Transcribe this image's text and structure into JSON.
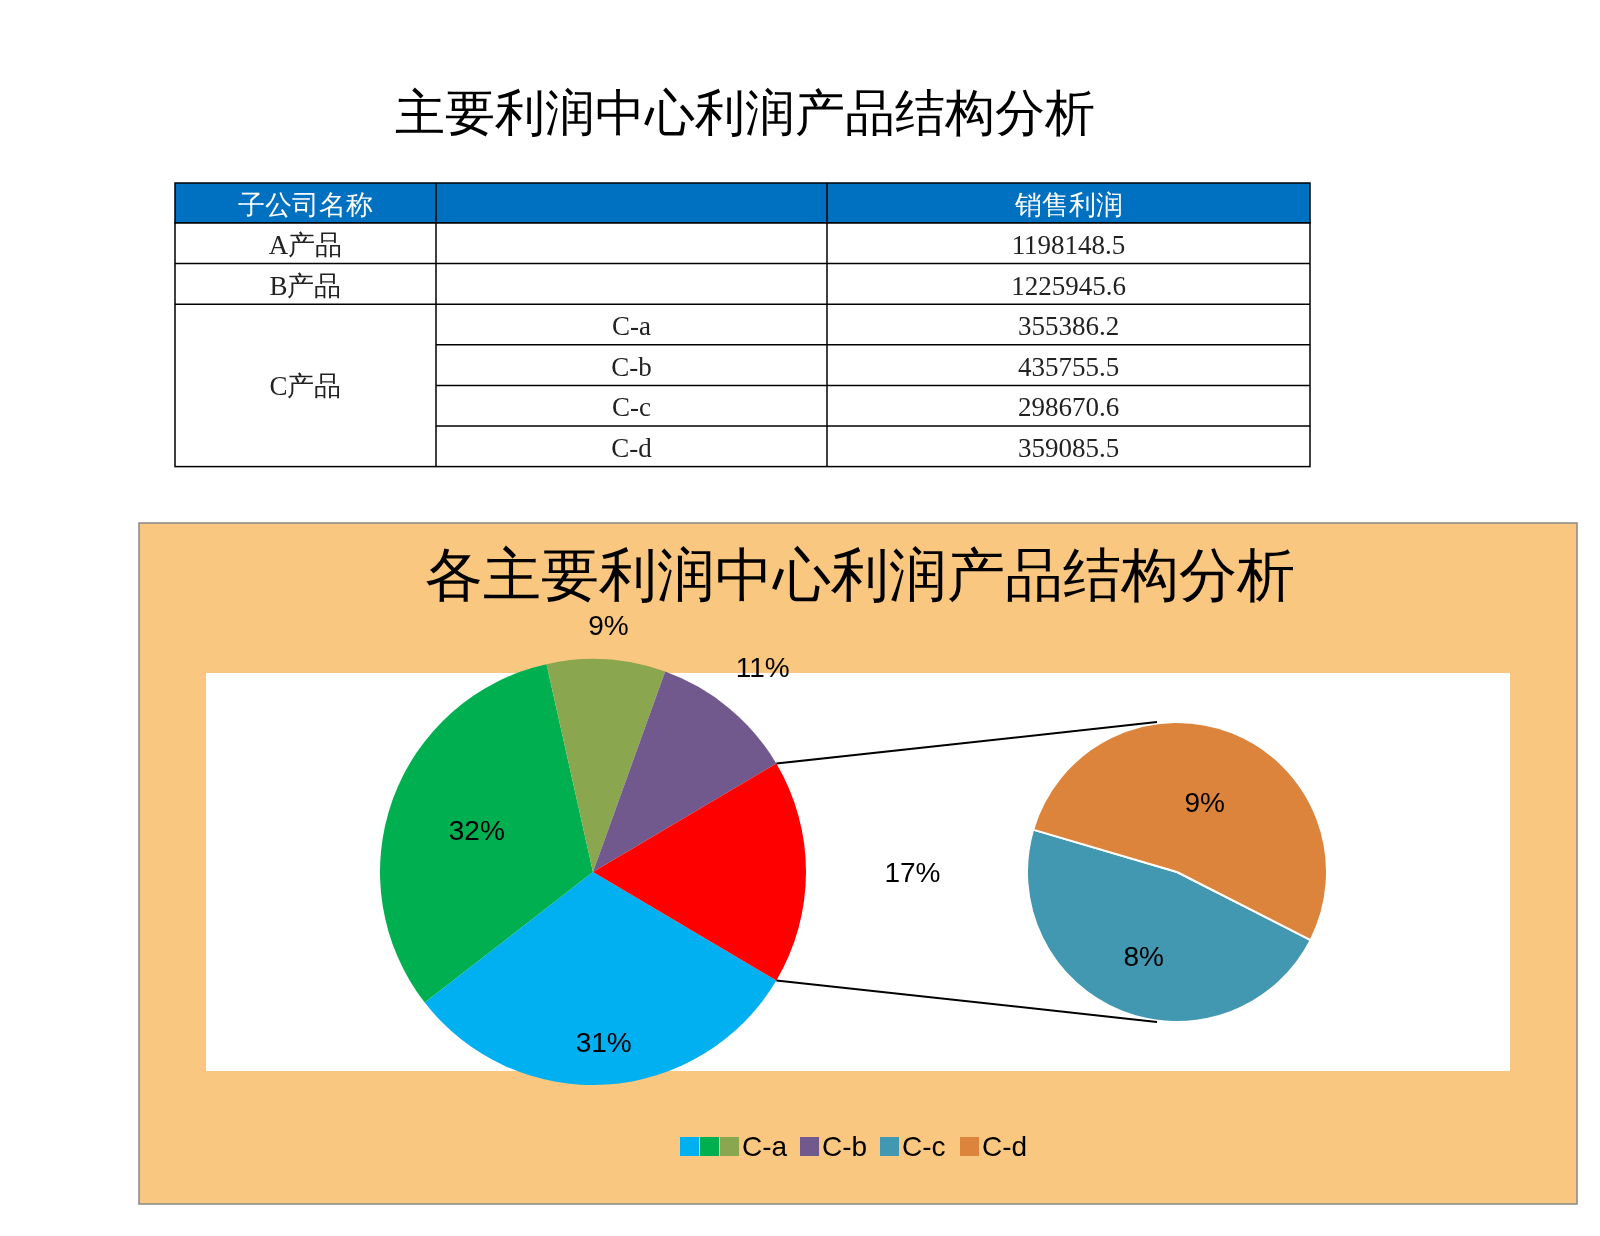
{
  "chart_data": [
    {
      "type": "other",
      "title": "主要利润中心利润产品结构分析",
      "categories": [
        "A产品",
        "B产品",
        "C-a",
        "C-b",
        "C-c",
        "C-d"
      ],
      "values": [
        1198148.5,
        1225945.6,
        355386.2,
        435755.5,
        298670.6,
        359085.5
      ],
      "data_labels": true,
      "annotations": [
        "子公司名称",
        "销售利润",
        "C产品"
      ]
    },
    {
      "type": "pie",
      "title": "各主要利润中心利润产品结构分析",
      "legend": "bottom",
      "categories": [
        null,
        null,
        "C-a",
        "C-b",
        null
      ],
      "values": [
        31,
        32,
        9,
        11,
        17
      ],
      "colors": [
        "#00b0f0",
        "#00b050",
        "#8aa64e",
        "#71598e",
        "#ff0000"
      ],
      "value_labels": [
        "31%",
        "32%",
        "9%",
        "11%",
        "17%"
      ]
    },
    {
      "type": "pie",
      "legend": "bottom",
      "categories": [
        "C-c",
        "C-d"
      ],
      "values": [
        8,
        9
      ],
      "colors": [
        "#4198b0",
        "#dc843c"
      ],
      "value_labels": [
        "8%",
        "9%"
      ]
    }
  ]
}
